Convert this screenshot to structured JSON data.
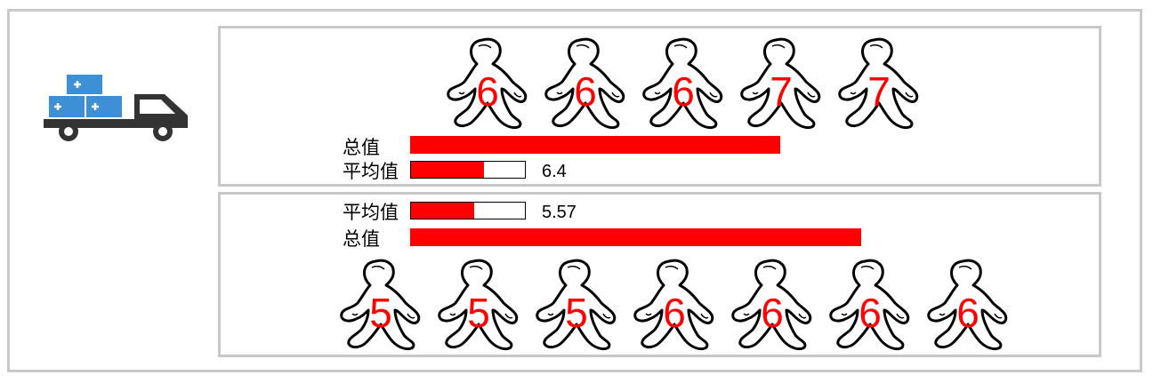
{
  "icon": "delivery-truck-with-medical-boxes-icon",
  "colors": {
    "bar": "#ff0000",
    "border": "#c8c8c8",
    "truck": "#333333",
    "boxes": "#3d8fd6"
  },
  "chart_data": [
    {
      "type": "pictograph-bar",
      "values": [
        6,
        6,
        6,
        7,
        7
      ],
      "total_label": "总值",
      "total_value": 32,
      "average_label": "平均值",
      "average_value": "6.4",
      "average_scale_max": 10
    },
    {
      "type": "pictograph-bar",
      "values": [
        5,
        5,
        5,
        6,
        6,
        6,
        6
      ],
      "total_label": "总值",
      "total_value": 39,
      "average_label": "平均值",
      "average_value": "5.57",
      "average_scale_max": 10
    }
  ]
}
